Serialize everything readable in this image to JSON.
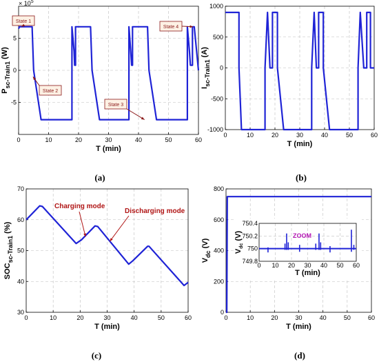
{
  "chart_data": [
    {
      "id": "a",
      "type": "line",
      "panel_label": "(a)",
      "xlabel": "T (min)",
      "ylabel_main": "P",
      "ylabel_sub": "sc-Train1",
      "ylabel_unit": "(W)",
      "y_multiplier": "× 10",
      "y_multiplier_exp": "5",
      "xlim": [
        0,
        60
      ],
      "ylim": [
        -10,
        10
      ],
      "xticks": [
        0,
        10,
        20,
        30,
        40,
        50,
        60
      ],
      "yticks": [
        -5,
        0,
        5
      ],
      "series": [
        {
          "x": [
            0,
            0.3,
            4.5,
            5,
            7.5,
            17.5,
            17.8,
            17.8,
            18.5,
            18.7,
            19,
            19,
            24,
            24.5,
            27,
            36.5,
            36.8,
            36.8,
            37.4,
            37.7,
            38,
            38,
            43,
            43.5,
            46,
            56,
            56.3,
            56.3,
            57,
            57.3,
            58,
            58,
            58.6,
            60
          ],
          "y": [
            6.5,
            6.8,
            6.8,
            0,
            -7.7,
            -7.7,
            -7.7,
            6.8,
            3.0,
            0.8,
            0.8,
            6.8,
            6.8,
            0,
            -7.7,
            -7.7,
            -7.7,
            6.8,
            3.0,
            0.8,
            0.8,
            6.8,
            6.8,
            0,
            -7.7,
            -7.7,
            -7.7,
            6.8,
            3.0,
            0.8,
            0.8,
            6.8,
            6.8,
            0
          ]
        }
      ],
      "annotations": [
        {
          "text": "State 1",
          "x": 1,
          "y": 6.8
        },
        {
          "text": "State 2",
          "x": 4.8,
          "y": -1
        },
        {
          "text": "State 3",
          "x": 42,
          "y": -7.7
        },
        {
          "text": "State 4",
          "x": 58.2,
          "y": 6.8
        }
      ]
    },
    {
      "id": "b",
      "type": "line",
      "panel_label": "(b)",
      "xlabel": "T (min)",
      "ylabel_main": "I",
      "ylabel_sub": "sc-Train1",
      "ylabel_unit": "(A)",
      "xlim": [
        0,
        60
      ],
      "ylim": [
        -1000,
        1000
      ],
      "xticks": [
        0,
        10,
        20,
        30,
        40,
        50,
        60
      ],
      "yticks": [
        -1000,
        -500,
        0,
        500,
        1000
      ],
      "series": [
        {
          "x": [
            0,
            0,
            5.5,
            5.5,
            6.5,
            16,
            16,
            17,
            18,
            19,
            19,
            20,
            21,
            21,
            23.5,
            25,
            34.8,
            34.8,
            35.8,
            36.7,
            37.6,
            37.6,
            38,
            39.5,
            39.5,
            42,
            43.8,
            53.5,
            53.5,
            54.4,
            55.8,
            57,
            57,
            58,
            58.5,
            58.5,
            60
          ],
          "y": [
            900,
            900,
            900,
            0,
            -1000,
            -1000,
            0,
            900,
            0,
            0,
            900,
            900,
            900,
            0,
            -1000,
            -1000,
            -1000,
            0,
            900,
            0,
            0,
            900,
            900,
            900,
            0,
            -1000,
            -1000,
            -1000,
            0,
            900,
            0,
            0,
            900,
            900,
            900,
            0,
            0
          ]
        }
      ]
    },
    {
      "id": "c",
      "type": "line",
      "panel_label": "(c)",
      "xlabel": "T (min)",
      "ylabel_main": "SOC",
      "ylabel_sub": "sc-Train1",
      "ylabel_unit": "(%)",
      "xlim": [
        0,
        60
      ],
      "ylim": [
        30,
        70
      ],
      "xticks": [
        0,
        10,
        20,
        30,
        40,
        50,
        60
      ],
      "yticks": [
        30,
        40,
        50,
        60,
        70
      ],
      "series": [
        {
          "x": [
            0,
            5,
            6,
            18.5,
            20.5,
            25.5,
            26.5,
            38,
            39.5,
            45,
            45.5,
            58.5,
            60
          ],
          "y": [
            60,
            64.5,
            64.3,
            52.3,
            53.5,
            58,
            57.8,
            45.6,
            46.7,
            51.4,
            51.4,
            38.7,
            39.7
          ]
        }
      ],
      "annotations": [
        {
          "text": "Charging mode",
          "x": 22,
          "y": 54.5
        },
        {
          "text": "Discharging mode",
          "x": 31,
          "y": 53
        }
      ]
    },
    {
      "id": "d",
      "type": "line",
      "panel_label": "(d)",
      "xlabel": "T (min)",
      "ylabel_main": "V",
      "ylabel_sub": "dc",
      "ylabel_unit": "(V)",
      "xlim": [
        0,
        60
      ],
      "ylim": [
        0,
        800
      ],
      "xticks": [
        0,
        10,
        20,
        30,
        40,
        50,
        60
      ],
      "yticks": [
        0,
        200,
        400,
        600,
        800
      ],
      "series": [
        {
          "x": [
            0,
            0.3,
            0.5,
            60
          ],
          "y": [
            0,
            0,
            750,
            750
          ]
        }
      ],
      "inset": {
        "label": "ZOOM",
        "xlabel": "T (min)",
        "ylabel_main": "V",
        "ylabel_sub": "dc",
        "ylabel_unit": "(V)",
        "xlim": [
          0,
          60
        ],
        "ylim": [
          749.8,
          750.4
        ],
        "xticks": [
          0,
          10,
          20,
          30,
          40,
          50,
          60
        ],
        "yticks": [
          749.8,
          750,
          750.2,
          750.4
        ],
        "spikes": [
          {
            "x": 5.5,
            "lo": 749.94,
            "hi": 750.02
          },
          {
            "x": 16,
            "lo": 749.98,
            "hi": 750.08
          },
          {
            "x": 17,
            "lo": 749.98,
            "hi": 750.24
          },
          {
            "x": 18,
            "lo": 749.98,
            "hi": 750.1
          },
          {
            "x": 25,
            "lo": 749.95,
            "hi": 750.06
          },
          {
            "x": 35,
            "lo": 749.98,
            "hi": 750.08
          },
          {
            "x": 37,
            "lo": 749.98,
            "hi": 750.24
          },
          {
            "x": 38,
            "lo": 749.98,
            "hi": 750.1
          },
          {
            "x": 43.8,
            "lo": 749.94,
            "hi": 750.04
          },
          {
            "x": 57,
            "lo": 749.95,
            "hi": 750.3
          },
          {
            "x": 58.5,
            "lo": 749.98,
            "hi": 750.06
          }
        ]
      }
    }
  ]
}
